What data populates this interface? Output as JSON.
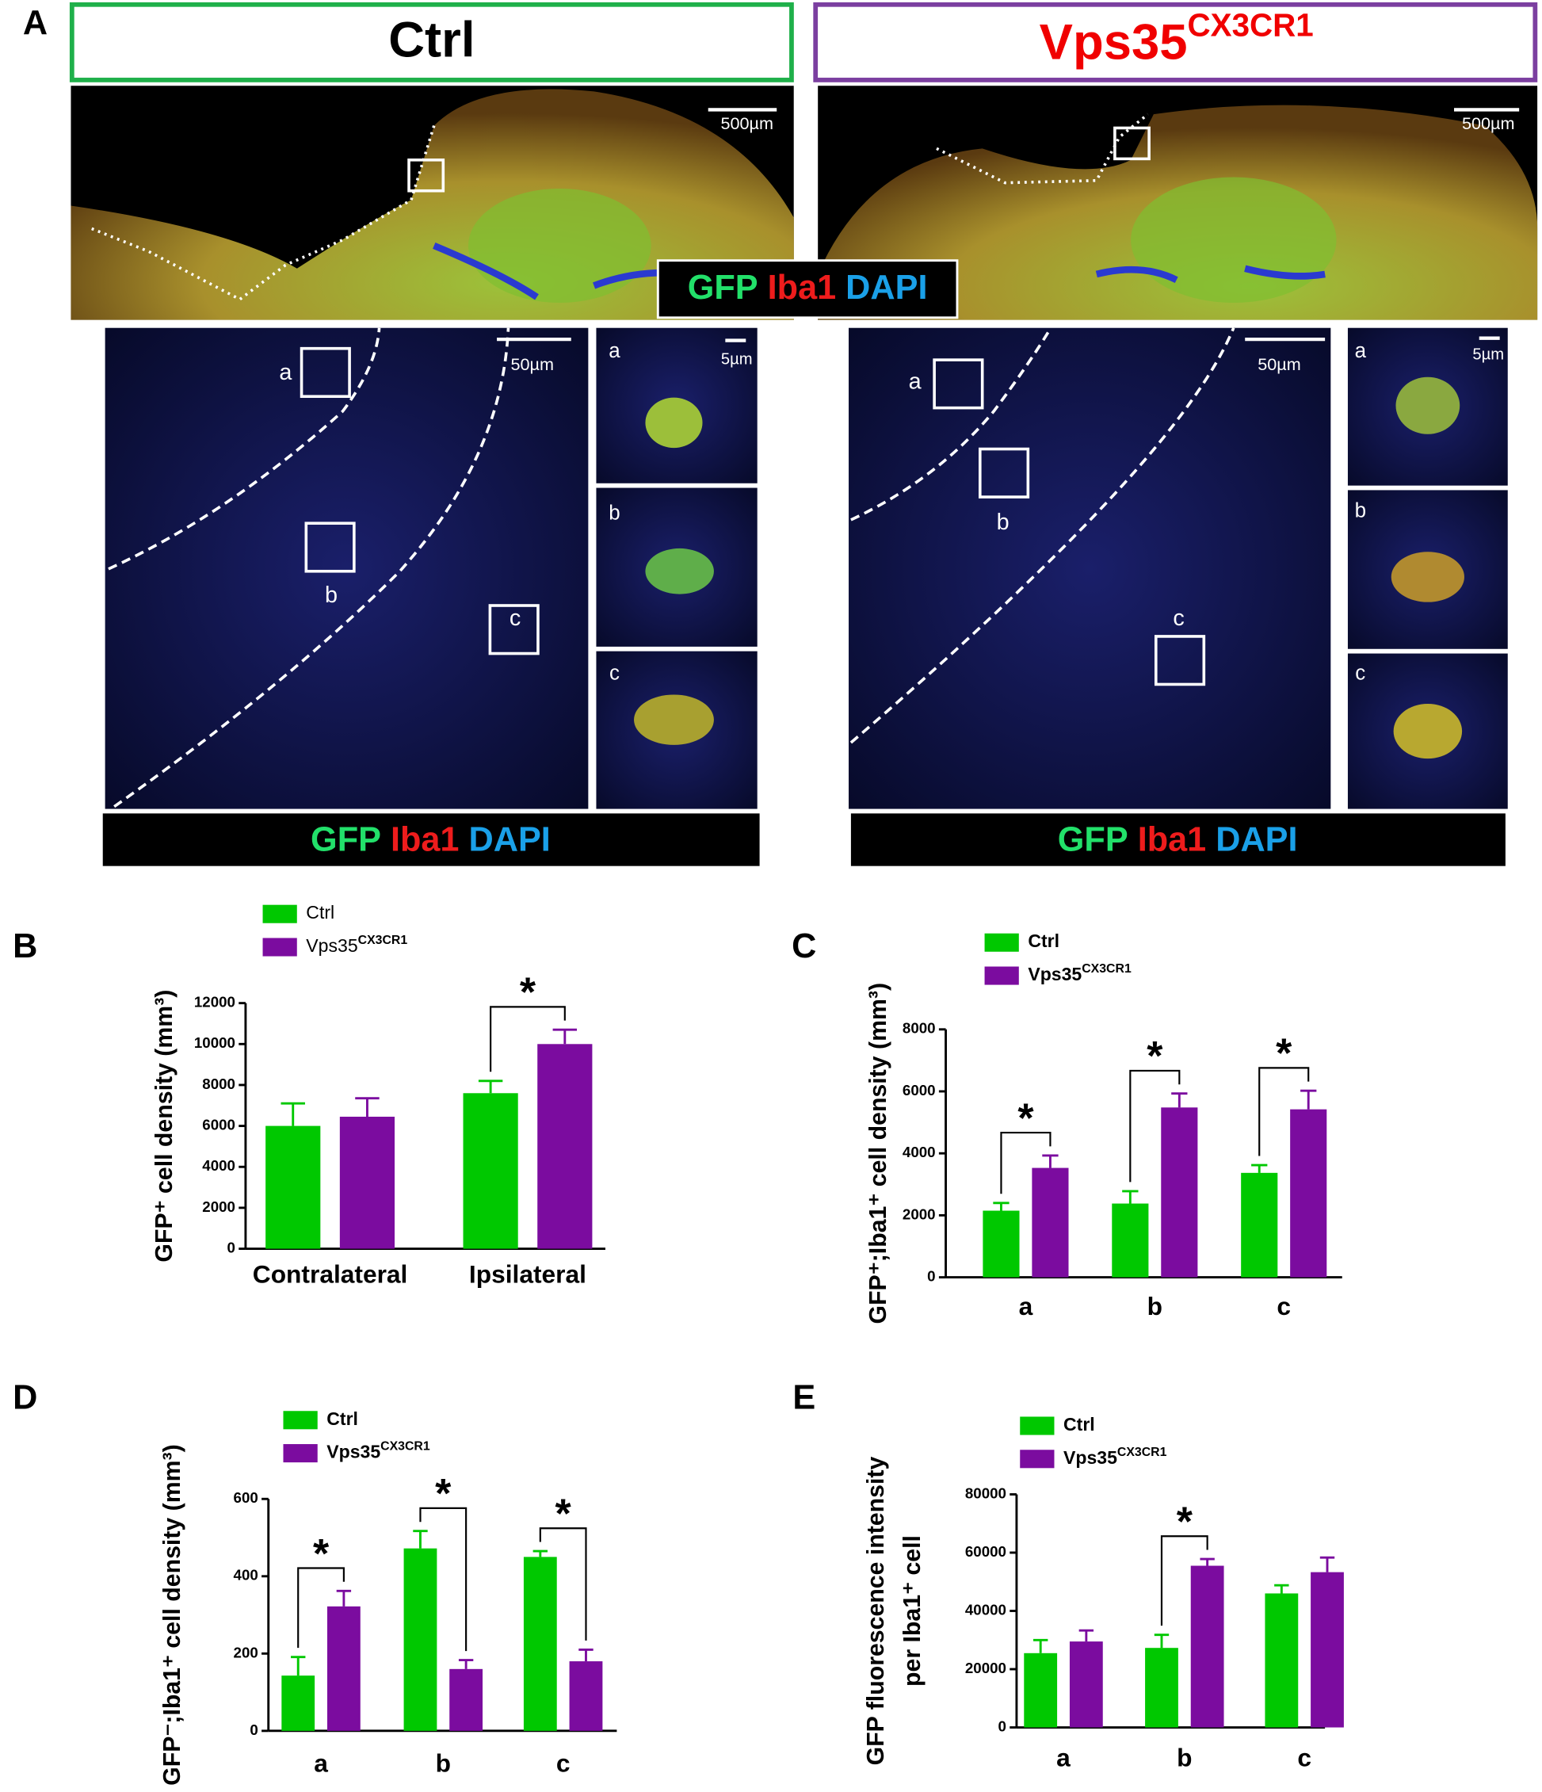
{
  "panel_a": {
    "label": "A",
    "ctrl_header": "Ctrl",
    "vps_header": "Vps35",
    "vps_header_superscript": "CX3CR1",
    "scale_bar_overview": "500µm",
    "scale_bar_field": "50µm",
    "scale_bar_inset": "5µm",
    "stain": [
      "GFP",
      "Iba1",
      "DAPI"
    ],
    "box_labels": [
      "a",
      "b",
      "c"
    ]
  },
  "chart_data": [
    {
      "type": "bar",
      "panel_label": "B",
      "y_label": [
        "GFP⁺ cell density (mm³)"
      ],
      "categories": [
        "Contralateral",
        "Ipsilateral"
      ],
      "series": [
        {
          "name": "Ctrl",
          "color": "#00c800",
          "values": [
            6000,
            7600
          ],
          "errors": [
            1100,
            600
          ]
        },
        {
          "name": "Vps35",
          "name_superscript": "CX3CR1",
          "color": "#7b0c9f",
          "values": [
            6450,
            10000
          ],
          "errors": [
            900,
            700
          ]
        }
      ],
      "ylim": [
        0,
        12000
      ],
      "yticks": [
        0,
        2000,
        4000,
        6000,
        8000,
        10000,
        12000
      ],
      "significance": [
        null,
        "*"
      ]
    },
    {
      "type": "bar",
      "panel_label": "C",
      "y_label": [
        "GFP⁺;Iba1⁺ cell density (mm³)"
      ],
      "categories": [
        "a",
        "b",
        "c"
      ],
      "series": [
        {
          "name": "Ctrl",
          "color": "#00c800",
          "values": [
            2150,
            2380,
            3370
          ],
          "errors": [
            250,
            400,
            250
          ]
        },
        {
          "name": "Vps35",
          "name_superscript": "CX3CR1",
          "color": "#7b0c9f",
          "values": [
            3530,
            5480,
            5420
          ],
          "errors": [
            400,
            450,
            600
          ]
        }
      ],
      "ylim": [
        0,
        8000
      ],
      "yticks": [
        0,
        2000,
        4000,
        6000,
        8000
      ],
      "significance": [
        "*",
        "*",
        "*"
      ]
    },
    {
      "type": "bar",
      "panel_label": "D",
      "y_label": [
        "GFP⁻;Iba1⁺ cell density (mm³)"
      ],
      "categories": [
        "a",
        "b",
        "c"
      ],
      "series": [
        {
          "name": "Ctrl",
          "color": "#00c800",
          "values": [
            143,
            472,
            450
          ],
          "errors": [
            48,
            45,
            15
          ]
        },
        {
          "name": "Vps35",
          "name_superscript": "CX3CR1",
          "color": "#7b0c9f",
          "values": [
            322,
            160,
            180
          ],
          "errors": [
            40,
            23,
            30
          ]
        }
      ],
      "ylim": [
        0,
        600
      ],
      "yticks": [
        0,
        200,
        400,
        600
      ],
      "significance": [
        "*",
        "*",
        "*"
      ]
    },
    {
      "type": "bar",
      "panel_label": "E",
      "y_label": [
        "GFP fluorescence intensity",
        "per  Iba1⁺ cell"
      ],
      "categories": [
        "a",
        "b",
        "c"
      ],
      "series": [
        {
          "name": "Ctrl",
          "color": "#00c800",
          "values": [
            25500,
            27300,
            46000
          ],
          "errors": [
            4500,
            4500,
            2800
          ]
        },
        {
          "name": "Vps35",
          "name_superscript": "CX3CR1",
          "color": "#7b0c9f",
          "values": [
            29500,
            55500,
            53300
          ],
          "errors": [
            3800,
            2300,
            5000
          ]
        }
      ],
      "ylim": [
        0,
        80000
      ],
      "yticks": [
        0,
        20000,
        40000,
        60000,
        80000
      ],
      "significance": [
        null,
        "*",
        null
      ]
    }
  ]
}
